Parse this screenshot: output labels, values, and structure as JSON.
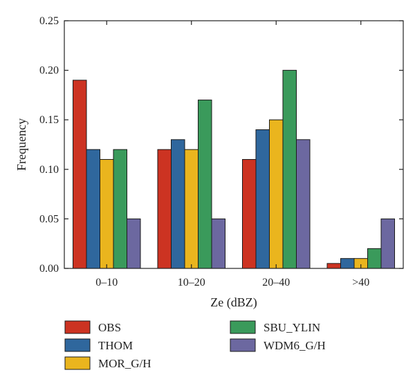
{
  "chart_data": {
    "type": "bar",
    "categories": [
      "0–10",
      "10–20",
      "20–40",
      ">40"
    ],
    "series": [
      {
        "name": "OBS",
        "values": [
          0.19,
          0.12,
          0.11,
          0.005
        ],
        "color": "#cc3322"
      },
      {
        "name": "THOM",
        "values": [
          0.12,
          0.13,
          0.14,
          0.01
        ],
        "color": "#2f679d"
      },
      {
        "name": "MOR_G/H",
        "values": [
          0.11,
          0.12,
          0.15,
          0.01
        ],
        "color": "#eab51e"
      },
      {
        "name": "SBU_YLIN",
        "values": [
          0.12,
          0.17,
          0.2,
          0.02
        ],
        "color": "#3a9a5b"
      },
      {
        "name": "WDM6_G/H",
        "values": [
          0.05,
          0.05,
          0.13,
          0.05
        ],
        "color": "#6c68a0"
      }
    ],
    "xlabel": "Ze (dBZ)",
    "ylabel": "Frequency",
    "ylim": [
      0,
      0.25
    ],
    "yticks": [
      "0.00",
      "0.05",
      "0.10",
      "0.15",
      "0.20",
      "0.25"
    ],
    "legend_position": "bottom",
    "grid": false
  }
}
